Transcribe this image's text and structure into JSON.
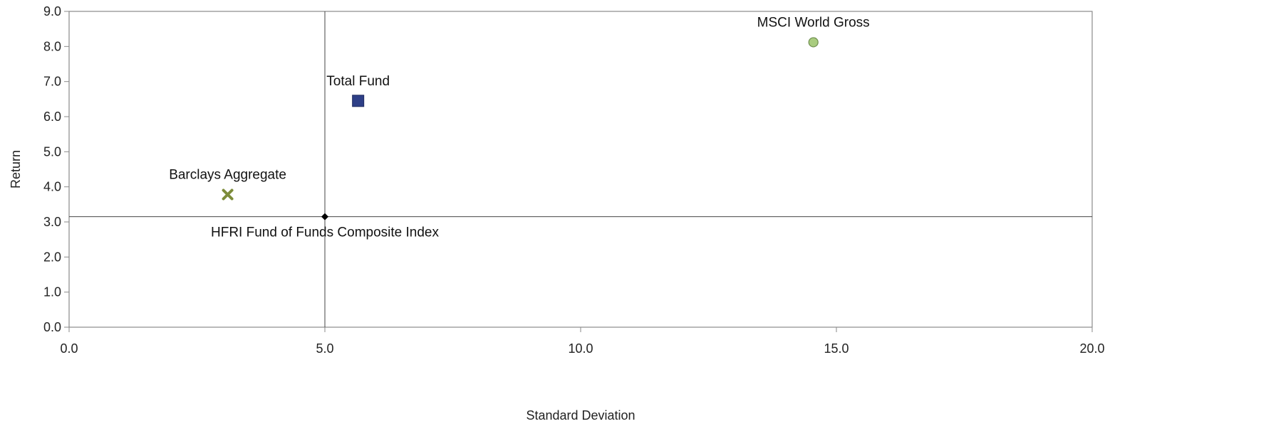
{
  "chart_data": {
    "type": "scatter",
    "title": "",
    "xlabel": "Standard Deviation",
    "ylabel": "Return",
    "xlim": [
      0,
      20
    ],
    "ylim": [
      0,
      9
    ],
    "xticks": [
      0,
      5,
      10,
      15,
      20
    ],
    "xtick_labels": [
      "0.0",
      "5.0",
      "10.0",
      "15.0",
      "20.0"
    ],
    "yticks": [
      0,
      1,
      2,
      3,
      4,
      5,
      6,
      7,
      8,
      9
    ],
    "ytick_labels": [
      "0.0",
      "1.0",
      "2.0",
      "3.0",
      "4.0",
      "5.0",
      "6.0",
      "7.0",
      "8.0",
      "9.0"
    ],
    "grid": false,
    "reference_lines": {
      "x": 5.0,
      "y": 3.15
    },
    "points": [
      {
        "name": "Total Fund",
        "x": 5.65,
        "y": 6.45,
        "marker": "square",
        "color": "#2e3f87",
        "label_position": "above"
      },
      {
        "name": "MSCI World Gross",
        "x": 14.55,
        "y": 8.12,
        "marker": "circle",
        "color": "#a9cc7f",
        "label_position": "above"
      },
      {
        "name": "Barclays Aggregate",
        "x": 3.1,
        "y": 3.78,
        "marker": "x",
        "color": "#7d8c3a",
        "label_position": "above"
      },
      {
        "name": "HFRI Fund of Funds Composite Index",
        "x": 5.0,
        "y": 3.15,
        "marker": "diamond",
        "color": "#000000",
        "label_position": "below"
      }
    ]
  }
}
